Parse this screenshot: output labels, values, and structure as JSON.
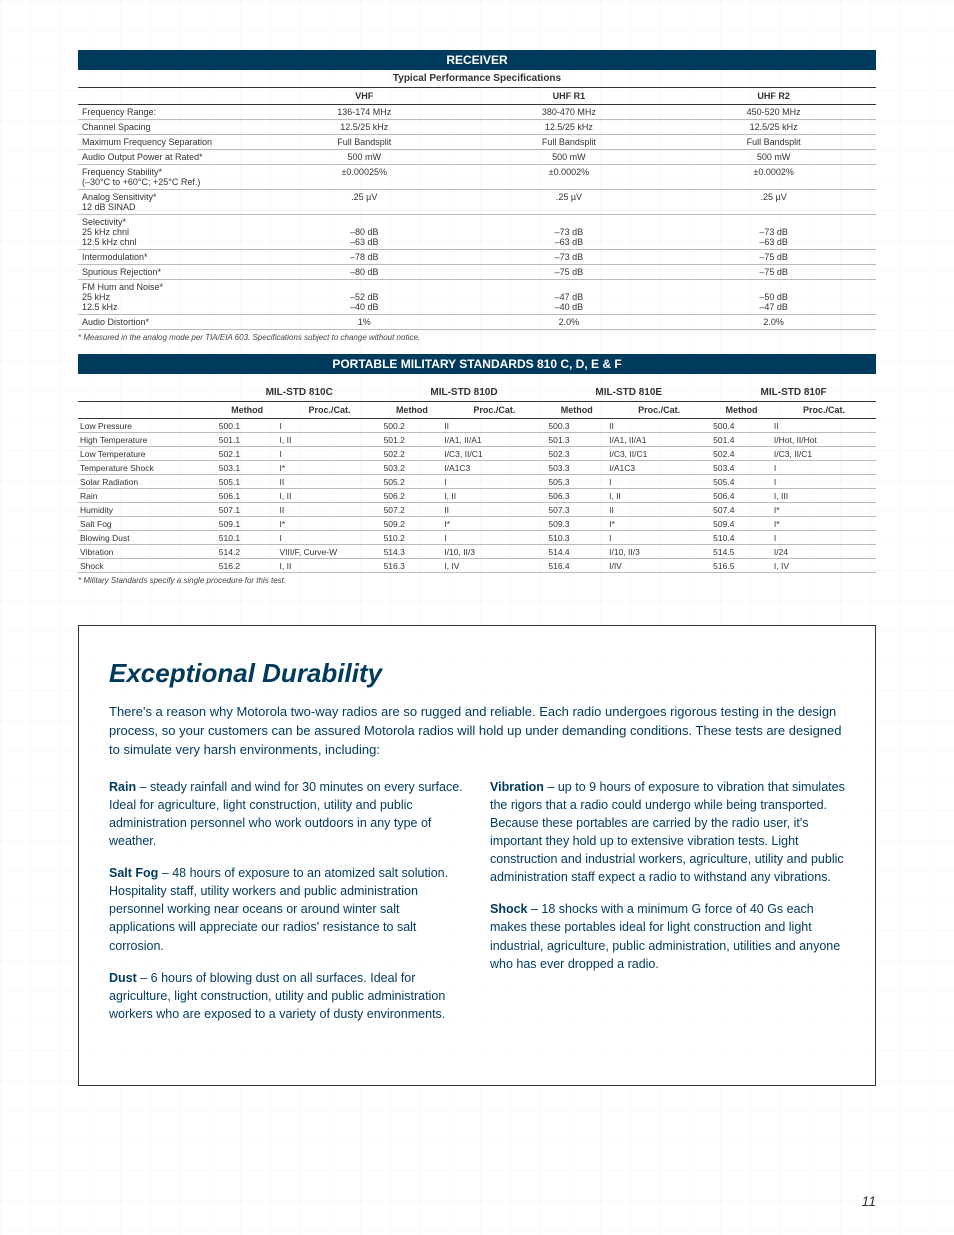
{
  "receiver": {
    "banner": "RECEIVER",
    "subtitle": "Typical Performance Specifications",
    "columns": [
      "VHF",
      "UHF R1",
      "UHF R2"
    ],
    "rows": [
      {
        "label": "Frequency Range:",
        "v": [
          "136-174 MHz",
          "380-470 MHz",
          "450-520 MHz"
        ]
      },
      {
        "label": "Channel Spacing",
        "v": [
          "12.5/25 kHz",
          "12.5/25 kHz",
          "12.5/25 kHz"
        ]
      },
      {
        "label": "Maximum Frequency Separation",
        "v": [
          "Full Bandsplit",
          "Full Bandsplit",
          "Full Bandsplit"
        ]
      },
      {
        "label": "Audio Output Power at Rated*",
        "v": [
          "500 mW",
          "500 mW",
          "500 mW"
        ]
      },
      {
        "label": "Frequency Stability*\n(–30°C to +60°C; +25°C Ref.)",
        "v": [
          "±0.00025%",
          "±0.0002%",
          "±0.0002%"
        ]
      },
      {
        "label": "Analog Sensitivity*\n12 dB SINAD",
        "v": [
          ".25 µV",
          ".25 µV",
          ".25 µV"
        ]
      },
      {
        "label": "Selectivity*\n  25 kHz chnl\n  12.5 kHz chnl",
        "v": [
          "\n–80 dB\n–63 dB",
          "\n–73 dB\n–63 dB",
          "\n–73 dB\n–63 dB"
        ]
      },
      {
        "label": "Intermodulation*",
        "v": [
          "–78 dB",
          "–73 dB",
          "–75 dB"
        ]
      },
      {
        "label": "Spurious Rejection*",
        "v": [
          "–80 dB",
          "–75 dB",
          "–75 dB"
        ]
      },
      {
        "label": "FM Hum and Noise*\n  25 kHz\n  12.5 kHz",
        "v": [
          "\n–52 dB\n–40 dB",
          "\n–47 dB\n–40 dB",
          "\n–50 dB\n–47 dB"
        ]
      },
      {
        "label": "Audio Distortion*",
        "v": [
          "1%",
          "2.0%",
          "2.0%"
        ]
      }
    ],
    "footnote": "* Measured in the analog mode per TIA/EIA 603.  Specifications subject to change without notice."
  },
  "mil": {
    "banner": "PORTABLE MILITARY STANDARDS 810 C, D, E & F",
    "groups": [
      "MIL-STD 810C",
      "MIL-STD 810D",
      "MIL-STD 810E",
      "MIL-STD 810F"
    ],
    "subcols": [
      "Method",
      "Proc./Cat."
    ],
    "rows": [
      {
        "label": "Low Pressure",
        "c": [
          [
            "500.1",
            "I"
          ],
          [
            "500.2",
            "II"
          ],
          [
            "500.3",
            "II"
          ],
          [
            "500.4",
            "II"
          ]
        ]
      },
      {
        "label": "High Temperature",
        "c": [
          [
            "501.1",
            "I, II"
          ],
          [
            "501.2",
            "I/A1, II/A1"
          ],
          [
            "501.3",
            "I/A1, II/A1"
          ],
          [
            "501.4",
            "I/Hot, II/Hot"
          ]
        ]
      },
      {
        "label": "Low Temperature",
        "c": [
          [
            "502.1",
            "I"
          ],
          [
            "502.2",
            "I/C3, II/C1"
          ],
          [
            "502.3",
            "I/C3, II/C1"
          ],
          [
            "502.4",
            "I/C3, II/C1"
          ]
        ]
      },
      {
        "label": "Temperature Shock",
        "c": [
          [
            "503.1",
            "I*"
          ],
          [
            "503.2",
            "I/A1C3"
          ],
          [
            "503.3",
            "I/A1C3"
          ],
          [
            "503.4",
            "I"
          ]
        ]
      },
      {
        "label": "Solar Radiation",
        "c": [
          [
            "505.1",
            "II"
          ],
          [
            "505.2",
            "I"
          ],
          [
            "505.3",
            "I"
          ],
          [
            "505.4",
            "I"
          ]
        ]
      },
      {
        "label": "Rain",
        "c": [
          [
            "506.1",
            "I, II"
          ],
          [
            "506.2",
            "I, II"
          ],
          [
            "506.3",
            "I, II"
          ],
          [
            "506.4",
            "I, III"
          ]
        ]
      },
      {
        "label": "Humidity",
        "c": [
          [
            "507.1",
            "II"
          ],
          [
            "507.2",
            "II"
          ],
          [
            "507.3",
            "II"
          ],
          [
            "507.4",
            "I*"
          ]
        ]
      },
      {
        "label": "Salt Fog",
        "c": [
          [
            "509.1",
            "I*"
          ],
          [
            "509.2",
            "I*"
          ],
          [
            "509.3",
            "I*"
          ],
          [
            "509.4",
            "I*"
          ]
        ]
      },
      {
        "label": "Blowing Dust",
        "c": [
          [
            "510.1",
            "I"
          ],
          [
            "510.2",
            "I"
          ],
          [
            "510.3",
            "I"
          ],
          [
            "510.4",
            "I"
          ]
        ]
      },
      {
        "label": "Vibration",
        "c": [
          [
            "514.2",
            "VIII/F, Curve-W"
          ],
          [
            "514.3",
            "I/10, II/3"
          ],
          [
            "514.4",
            "I/10, II/3"
          ],
          [
            "514.5",
            "I/24"
          ]
        ]
      },
      {
        "label": "Shock",
        "c": [
          [
            "516.2",
            "I, II"
          ],
          [
            "516.3",
            "I, IV"
          ],
          [
            "516.4",
            "I/IV"
          ],
          [
            "516.5",
            "I, IV"
          ]
        ]
      }
    ],
    "footnote": "* Military Standards specify a single procedure for this test."
  },
  "durability": {
    "title": "Exceptional Durability",
    "intro": "There's a reason why Motorola two-way radios are so rugged and reliable. Each radio undergoes rigorous testing in the design process, so your customers can be assured Motorola radios will hold up under demanding conditions. These tests are designed to simulate very harsh environments, including:",
    "left": [
      {
        "b": "Rain",
        "t": " – steady rainfall and wind for 30 minutes on every surface. Ideal for agriculture, light construction, utility and public administration personnel who work outdoors in any type of weather."
      },
      {
        "b": "Salt Fog",
        "t": " –  48 hours of exposure to an atomized salt solution. Hospitality staff, utility workers and public administration personnel working near oceans or around winter salt applications will appreciate our radios' resistance to salt corrosion."
      },
      {
        "b": "Dust",
        "t": " –  6 hours of blowing dust on all surfaces. Ideal for agriculture, light construction, utility and public administration workers who are exposed to a variety of dusty environments."
      }
    ],
    "right": [
      {
        "b": "Vibration",
        "t": " – up to 9 hours of exposure to vibration that simulates the rigors that a radio could undergo while being transported. Because these portables are carried by the radio user, it's important they hold up to extensive vibration tests. Light construction and industrial workers, agriculture, utility and public administration staff expect a radio to withstand any vibrations."
      },
      {
        "b": "Shock",
        "t": " – 18 shocks with a minimum G force of 40 Gs each makes these portables ideal for light construction and light industrial, agriculture, public administration, utilities and anyone who has ever dropped a radio."
      }
    ]
  },
  "page": "11",
  "colors": {
    "banner_bg": "#003a5d",
    "text_blue": "#003a5d",
    "grid_line": "#e8f4fd",
    "row_line": "#bbbbbb",
    "strong_line": "#333333"
  }
}
